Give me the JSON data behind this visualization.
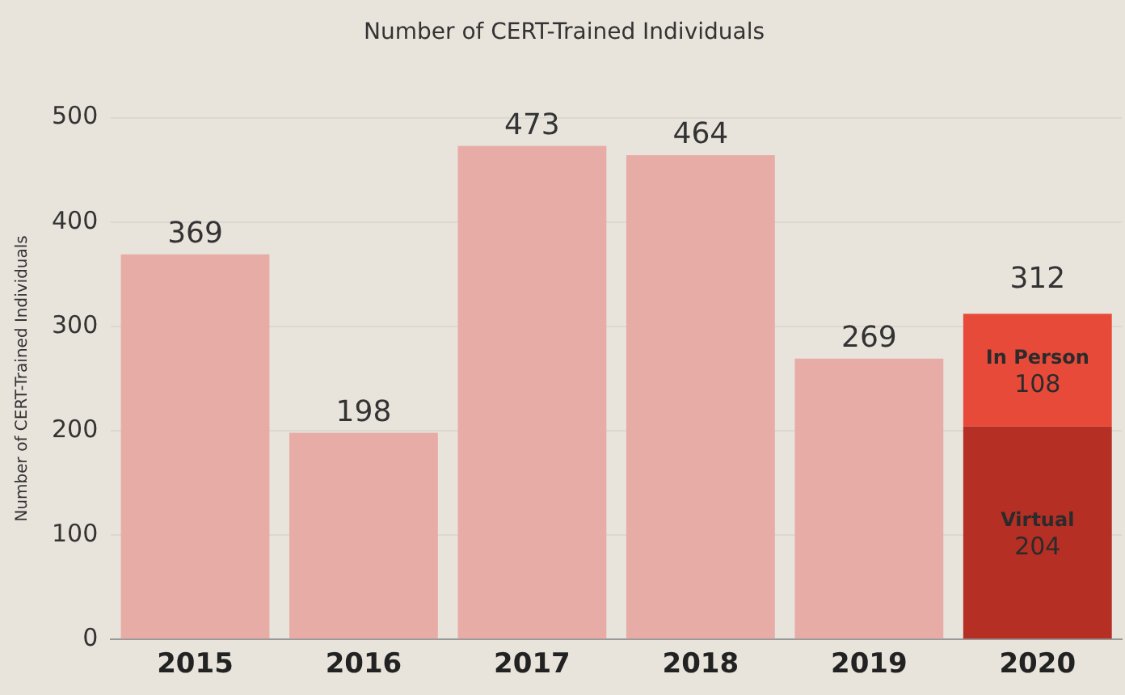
{
  "chart_data": {
    "type": "bar",
    "title": "Number of CERT-Trained Individuals",
    "ylabel": "Number of CERT-Trained Individuals",
    "categories": [
      "2015",
      "2016",
      "2017",
      "2018",
      "2019",
      "2020"
    ],
    "series": [
      {
        "color": "#e8aca7",
        "values": [
          369,
          198,
          473,
          464,
          269,
          null
        ]
      },
      {
        "name": "Virtual",
        "color": "#b52f25",
        "values": [
          null,
          null,
          null,
          null,
          null,
          204
        ]
      },
      {
        "name": "In Person",
        "color": "#e84a3a",
        "values": [
          null,
          null,
          null,
          null,
          null,
          108
        ]
      }
    ],
    "stacked": true,
    "data_labels": true,
    "totals": [
      null,
      null,
      null,
      null,
      null,
      "312"
    ],
    "ylim": [
      0,
      500
    ],
    "yticks": [
      0,
      100,
      200,
      300,
      400,
      500
    ],
    "grid": "y",
    "legend": false
  }
}
